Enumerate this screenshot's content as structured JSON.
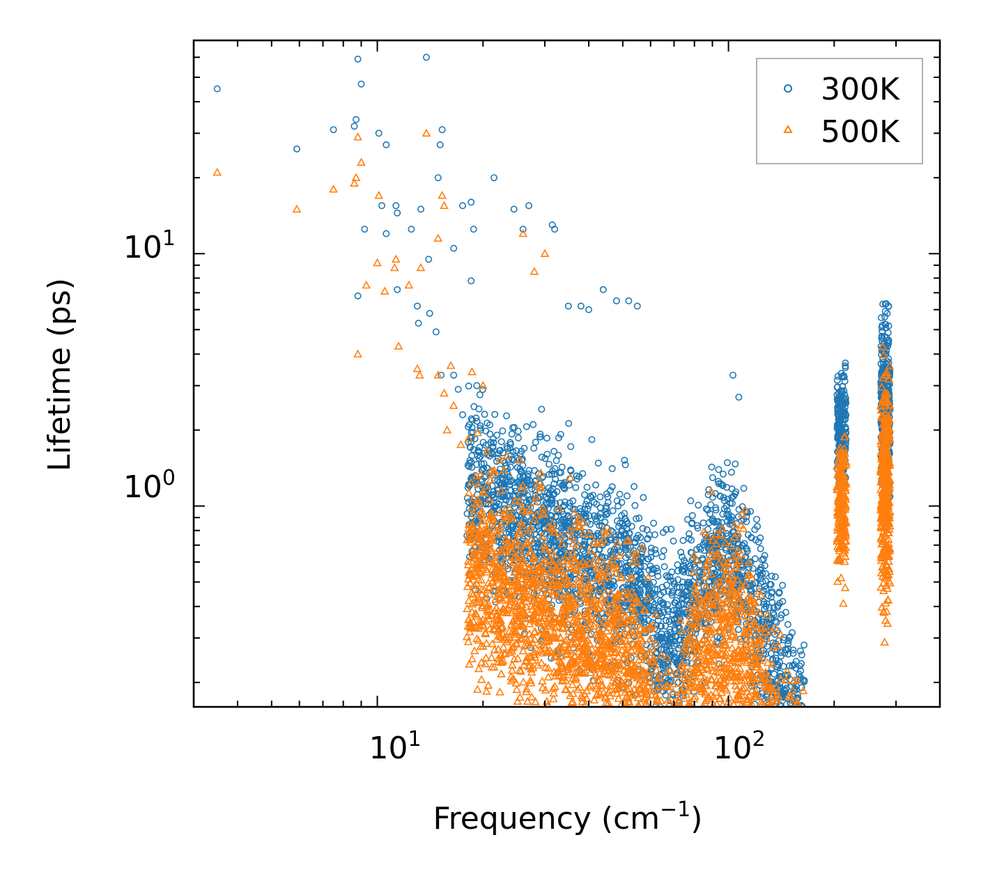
{
  "chart_data": {
    "type": "scatter",
    "title": "",
    "xlabel": "Frequency (cm",
    "xlabel_sup": "−1",
    "xlabel_close": ")",
    "ylabel": "Lifetime (ps)",
    "xscale": "log",
    "yscale": "log",
    "xlim": [
      3.0,
      400
    ],
    "ylim": [
      0.16,
      70
    ],
    "x_ticks": [
      {
        "base": "10",
        "exp": "1",
        "value": 10
      },
      {
        "base": "10",
        "exp": "2",
        "value": 100
      }
    ],
    "y_ticks": [
      {
        "base": "10",
        "exp": "0",
        "value": 1
      },
      {
        "base": "10",
        "exp": "1",
        "value": 10
      }
    ],
    "legend_position": "top-right",
    "series": [
      {
        "name": "300K",
        "marker": "circle",
        "color": "#1f77b4",
        "points": [
          [
            3.5,
            45
          ],
          [
            5.9,
            26
          ],
          [
            7.5,
            31
          ],
          [
            8.6,
            32
          ],
          [
            8.7,
            34
          ],
          [
            8.8,
            59
          ],
          [
            9.0,
            47
          ],
          [
            10.1,
            30
          ],
          [
            10.6,
            27
          ],
          [
            10.3,
            15.5
          ],
          [
            11.3,
            15.5
          ],
          [
            12.5,
            12.5
          ],
          [
            13.3,
            15
          ],
          [
            14.0,
            9.5
          ],
          [
            15.1,
            27
          ],
          [
            15.3,
            31
          ],
          [
            9.2,
            12.5
          ],
          [
            10.6,
            12
          ],
          [
            11.4,
            14.5
          ],
          [
            13.8,
            60
          ],
          [
            14.9,
            20
          ],
          [
            16.5,
            10.5
          ],
          [
            17.5,
            15.5
          ],
          [
            18.5,
            16
          ],
          [
            18.8,
            12.5
          ],
          [
            21.5,
            20
          ],
          [
            24.5,
            15
          ],
          [
            26,
            12.5
          ],
          [
            27,
            15.5
          ],
          [
            8.8,
            6.8
          ],
          [
            11.4,
            7.2
          ],
          [
            13.0,
            6.2
          ],
          [
            13.1,
            5.3
          ],
          [
            14.1,
            5.8
          ],
          [
            14.7,
            4.9
          ],
          [
            15.2,
            3.3
          ],
          [
            16.5,
            3.3
          ],
          [
            17.0,
            2.9
          ],
          [
            17.5,
            2.3
          ],
          [
            18.5,
            7.8
          ],
          [
            19.2,
            3.0
          ],
          [
            19.7,
            2.0
          ],
          [
            20.2,
            1.3
          ],
          [
            20.5,
            0.43
          ],
          [
            21.5,
            0.46
          ],
          [
            22.5,
            0.6
          ],
          [
            19.6,
            0.87
          ],
          [
            21.2,
            0.95
          ],
          [
            23.0,
            0.75
          ],
          [
            24.5,
            0.65
          ],
          [
            25.5,
            0.55
          ],
          [
            31.5,
            13.0
          ],
          [
            32,
            12.5
          ],
          [
            35,
            6.2
          ],
          [
            38,
            6.2
          ],
          [
            40,
            6.0
          ],
          [
            44,
            7.2
          ],
          [
            48,
            6.5
          ],
          [
            52,
            6.5
          ],
          [
            55,
            6.2
          ],
          [
            103,
            3.3
          ],
          [
            107,
            2.7
          ]
        ]
      },
      {
        "name": "500K",
        "marker": "triangle",
        "color": "#ff7f0e",
        "points": [
          [
            3.5,
            21
          ],
          [
            5.9,
            15
          ],
          [
            7.5,
            18
          ],
          [
            8.6,
            19
          ],
          [
            8.7,
            20
          ],
          [
            8.8,
            29
          ],
          [
            9.0,
            23
          ],
          [
            10.1,
            17
          ],
          [
            13.8,
            30
          ],
          [
            15.3,
            17
          ],
          [
            15.5,
            15.5
          ],
          [
            14.9,
            11.5
          ],
          [
            10.0,
            9.2
          ],
          [
            11.2,
            8.8
          ],
          [
            11.3,
            9.5
          ],
          [
            9.3,
            7.5
          ],
          [
            10.5,
            7.1
          ],
          [
            12.3,
            7.5
          ],
          [
            13.3,
            8.8
          ],
          [
            8.8,
            4.0
          ],
          [
            11.5,
            4.3
          ],
          [
            13.0,
            3.5
          ],
          [
            13.2,
            3.3
          ],
          [
            14.9,
            3.3
          ],
          [
            15.5,
            2.8
          ],
          [
            15.8,
            2.0
          ],
          [
            16.5,
            2.5
          ],
          [
            17.3,
            1.75
          ],
          [
            18.2,
            1.85
          ],
          [
            19.3,
            1.95
          ],
          [
            20.5,
            1.65
          ],
          [
            21.5,
            1.35
          ],
          [
            22.5,
            1.15
          ],
          [
            19.8,
            0.24
          ],
          [
            20.4,
            0.25
          ],
          [
            21.5,
            0.23
          ],
          [
            22.5,
            0.24
          ],
          [
            23.0,
            0.26
          ],
          [
            24.0,
            0.27
          ],
          [
            25.0,
            0.35
          ],
          [
            18.6,
            3.4
          ],
          [
            20.0,
            3.0
          ],
          [
            16.2,
            3.6
          ],
          [
            26.0,
            12.0
          ],
          [
            28.0,
            8.5
          ],
          [
            30,
            10
          ]
        ]
      }
    ]
  },
  "legend": {
    "items": [
      {
        "label": "300K"
      },
      {
        "label": "500K"
      }
    ]
  }
}
